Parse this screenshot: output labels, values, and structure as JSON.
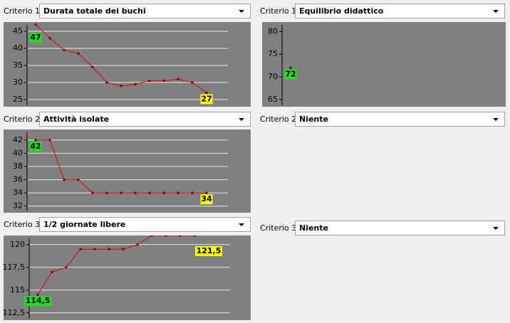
{
  "panels": [
    {
      "label": "Criterio 1:",
      "selected": "Durata totale dei buchi",
      "chart": {
        "type": "line",
        "color": "#e00000",
        "grid": true,
        "values": [
          47,
          43,
          39.5,
          38.5,
          34.5,
          30,
          29,
          29.5,
          30.5,
          30.5,
          31,
          30,
          27
        ],
        "ylim": [
          22.9,
          47.7
        ],
        "yticks": [
          25,
          30,
          35,
          40,
          45
        ]
      }
    },
    {
      "label": "Criterio 1:",
      "selected": "Equilibrio didattico",
      "chart": {
        "type": "line",
        "color": "#e00000",
        "grid": false,
        "values": [
          72
        ],
        "ylim": [
          63.4,
          82.1
        ],
        "yticks": [
          65,
          70,
          75,
          80
        ]
      }
    },
    {
      "label": "Criterio 2:",
      "selected": "Attività isolate",
      "chart": {
        "type": "line",
        "color": "#e00000",
        "grid": true,
        "values": [
          42,
          42,
          36,
          36,
          34,
          34,
          34,
          34,
          34,
          34,
          34,
          34,
          34
        ],
        "ylim": [
          31,
          43.6
        ],
        "yticks": [
          32,
          34,
          36,
          38,
          40,
          42
        ]
      }
    },
    {
      "label": "Criterio 2:",
      "selected": "Niente"
    },
    {
      "label": "Criterio 3:",
      "selected": "1/2 giornate libere",
      "chart": {
        "type": "line",
        "color": "#e00000",
        "grid": true,
        "values": [
          114.5,
          117,
          117.5,
          119.5,
          119.5,
          119.5,
          119.5,
          120,
          121,
          121,
          121,
          121,
          121.5
        ],
        "value_labels": [
          "114,5",
          null,
          null,
          null,
          null,
          null,
          null,
          null,
          null,
          null,
          null,
          null,
          "121,5"
        ],
        "ylim": [
          111.7,
          121
        ],
        "yticks": [
          {
            "value": 112.5,
            "label": "112,5"
          },
          115,
          {
            "value": 117.5,
            "label": "117,5"
          },
          120
        ]
      }
    },
    {
      "label": "Criterio 3:",
      "selected": "Niente"
    }
  ]
}
